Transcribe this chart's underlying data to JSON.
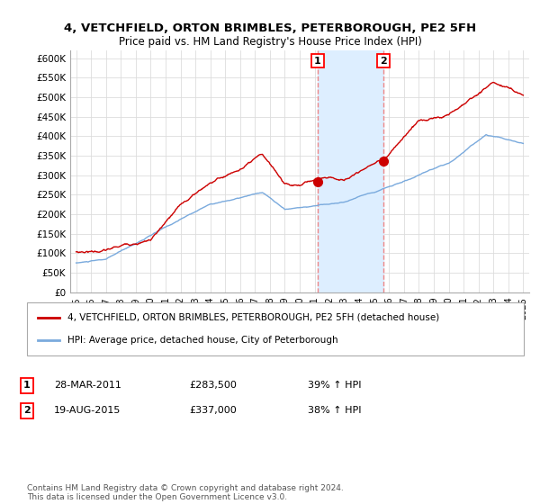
{
  "title": "4, VETCHFIELD, ORTON BRIMBLES, PETERBOROUGH, PE2 5FH",
  "subtitle": "Price paid vs. HM Land Registry's House Price Index (HPI)",
  "ylim": [
    0,
    620000
  ],
  "yticks": [
    0,
    50000,
    100000,
    150000,
    200000,
    250000,
    300000,
    350000,
    400000,
    450000,
    500000,
    550000,
    600000
  ],
  "ytick_labels": [
    "£0",
    "£50K",
    "£100K",
    "£150K",
    "£200K",
    "£250K",
    "£300K",
    "£350K",
    "£400K",
    "£450K",
    "£500K",
    "£550K",
    "£600K"
  ],
  "sale1_date": 2011.2,
  "sale1_price": 283500,
  "sale2_date": 2015.62,
  "sale2_price": 337000,
  "legend_line1": "4, VETCHFIELD, ORTON BRIMBLES, PETERBOROUGH, PE2 5FH (detached house)",
  "legend_line2": "HPI: Average price, detached house, City of Peterborough",
  "footnote": "Contains HM Land Registry data © Crown copyright and database right 2024.\nThis data is licensed under the Open Government Licence v3.0.",
  "line_color_red": "#cc0000",
  "line_color_blue": "#7aaadd",
  "background_color": "#ffffff",
  "shade_color": "#ddeeff",
  "vline_color": "#ee8888",
  "grid_color": "#dddddd"
}
